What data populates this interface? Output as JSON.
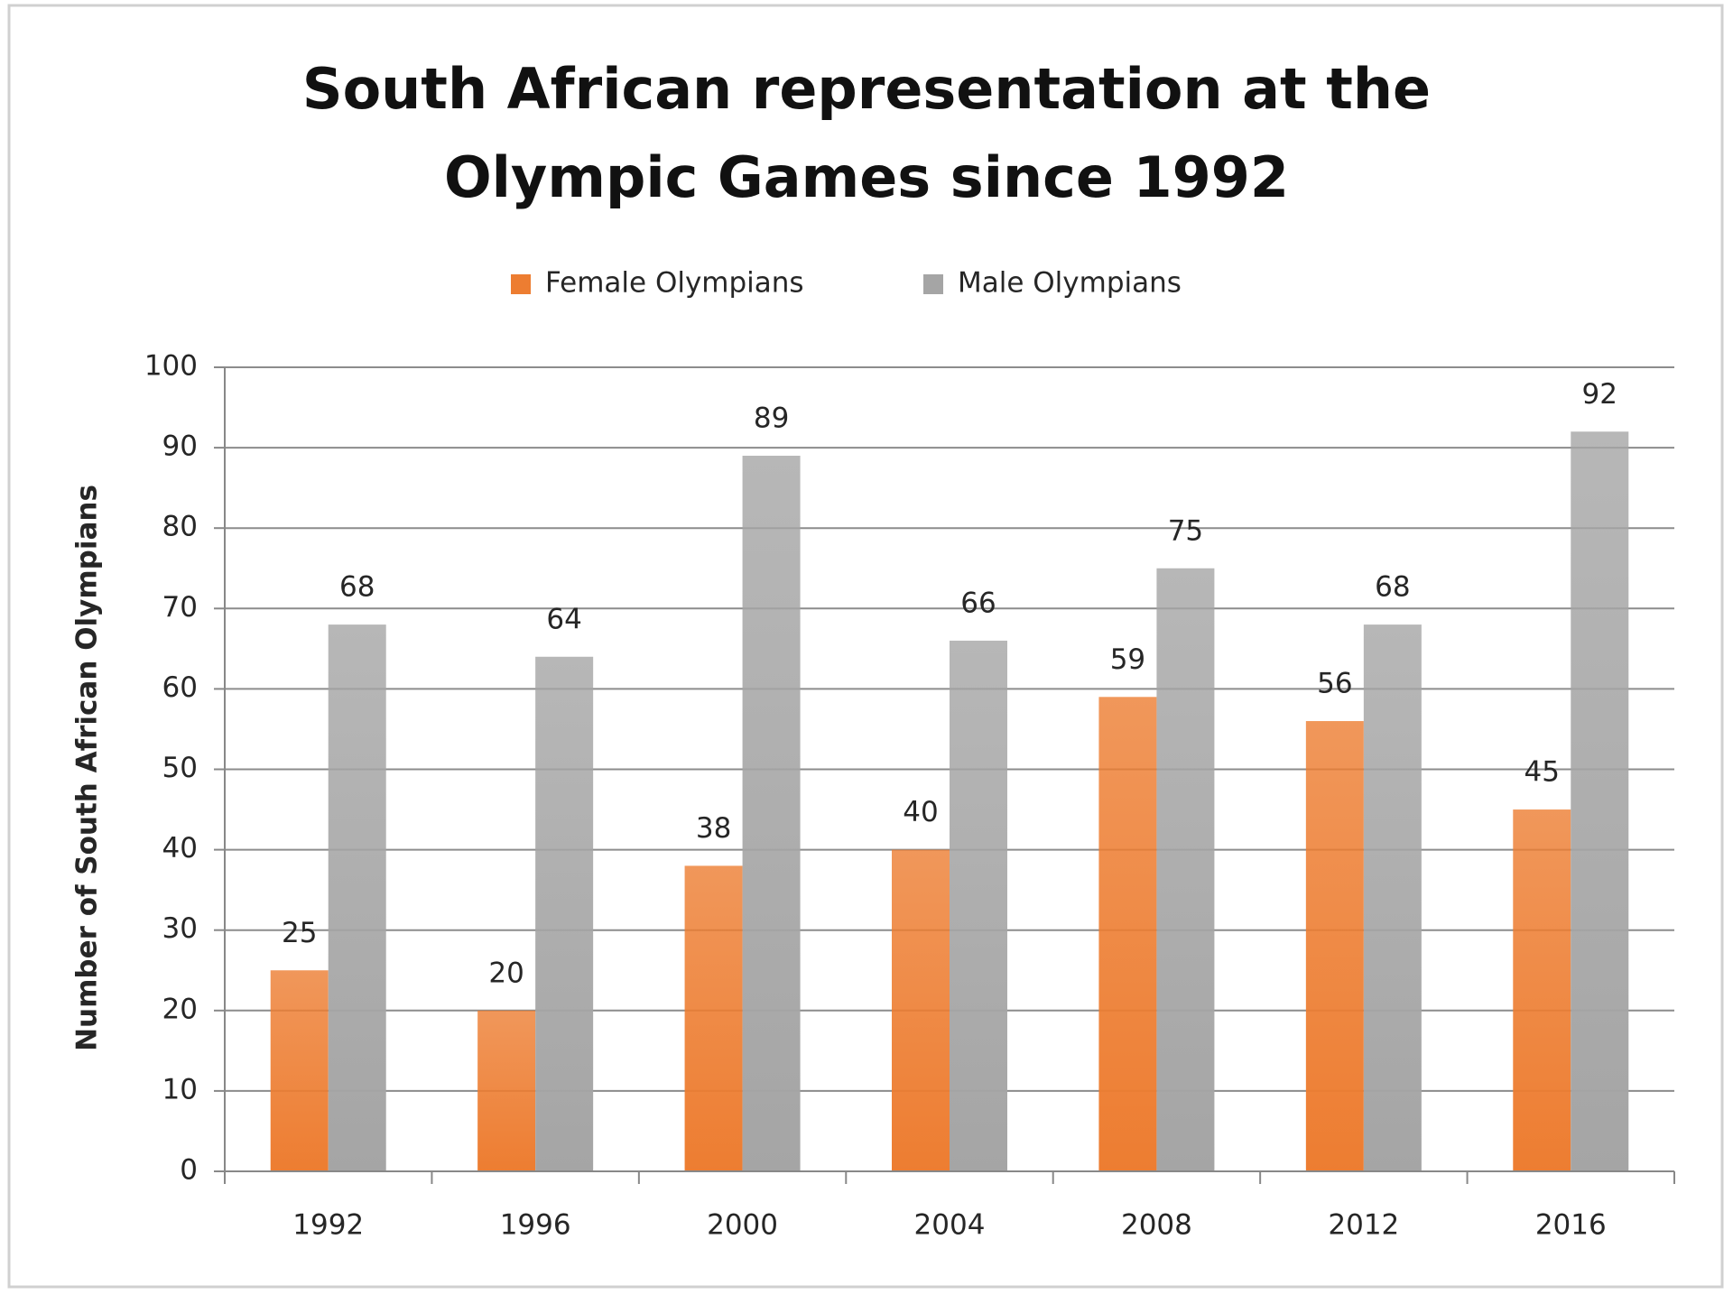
{
  "chart_data": {
    "type": "bar",
    "title": "South African representation at the\nOlympic Games since 1992",
    "y_label": "Number of South African Olympians",
    "categories": [
      "1992",
      "1996",
      "2000",
      "2004",
      "2008",
      "2012",
      "2016"
    ],
    "series": [
      {
        "name": "Female Olympians",
        "color": "#ed7d31",
        "values": [
          25,
          20,
          38,
          40,
          59,
          56,
          45
        ]
      },
      {
        "name": "Male Olympians",
        "color": "#a5a5a5",
        "values": [
          68,
          64,
          89,
          66,
          75,
          68,
          92
        ]
      }
    ],
    "ylim": [
      0,
      100
    ],
    "yticks": [
      0,
      10,
      20,
      30,
      40,
      50,
      60,
      70,
      80,
      90,
      100
    ],
    "grid": true,
    "legend": "top",
    "data_labels": true
  }
}
